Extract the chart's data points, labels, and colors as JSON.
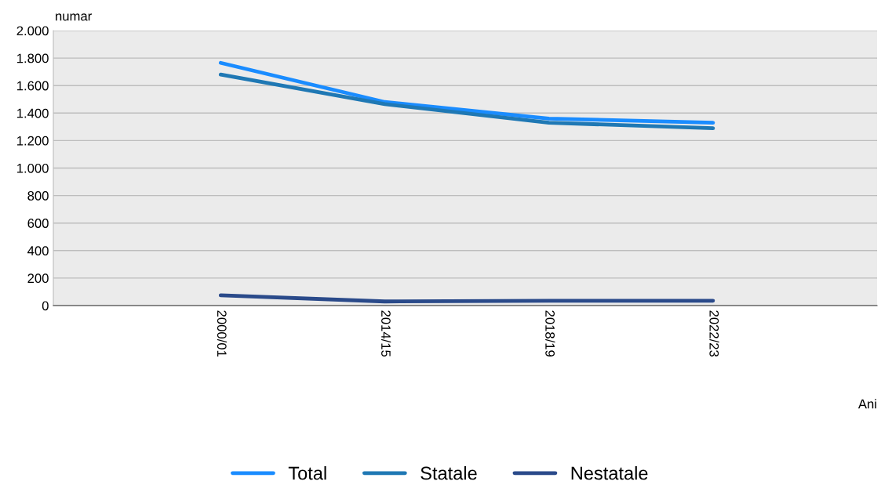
{
  "chart_data": {
    "type": "line",
    "ylabel": "numar",
    "xlabel": "Ani",
    "categories": [
      "2000/01",
      "2014/15",
      "2018/19",
      "2022/23"
    ],
    "series": [
      {
        "name": "Total",
        "color": "#1a8cff",
        "values": [
          1765,
          1480,
          1360,
          1330
        ]
      },
      {
        "name": "Statale",
        "color": "#1f78b4",
        "values": [
          1680,
          1465,
          1330,
          1290
        ]
      },
      {
        "name": "Nestatale",
        "color": "#2a4a8a",
        "values": [
          75,
          30,
          35,
          35
        ]
      }
    ],
    "ylim": [
      0,
      2000
    ],
    "yticks": [
      0,
      200,
      400,
      600,
      800,
      {
        "value": 1000,
        "label": "1.000"
      },
      {
        "value": 1200,
        "label": "1.200"
      },
      {
        "value": 1400,
        "label": "1.400"
      },
      {
        "value": 1600,
        "label": "1.600"
      },
      {
        "value": 1800,
        "label": "1.800"
      },
      {
        "value": 2000,
        "label": "2.000"
      }
    ],
    "grid": "y",
    "legend": "bottom",
    "marker": "none",
    "line_style": "solid"
  }
}
